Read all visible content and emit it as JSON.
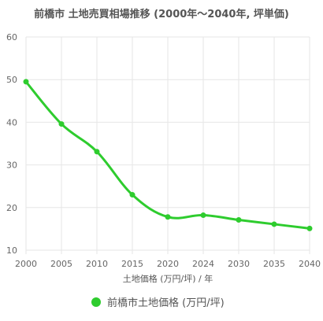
{
  "chart_data": {
    "type": "line",
    "title": "前橋市 土地売買相場推移 (2000年〜2040年, 坪単価)",
    "xlabel": "土地価格 (万円/坪) / 年",
    "ylabel": "",
    "categories": [
      "2000",
      "2005",
      "2010",
      "2015",
      "2020",
      "2024",
      "2030",
      "2035",
      "2040"
    ],
    "ylim": [
      10,
      60
    ],
    "yticks": [
      "10",
      "20",
      "30",
      "40",
      "50",
      "60"
    ],
    "grid": true,
    "legend_position": "bottom",
    "series": [
      {
        "name": "前橋市土地価格 (万円/坪)",
        "values": [
          49.5,
          39.6,
          33.1,
          23.0,
          17.8,
          18.2,
          17.1,
          16.1,
          15.1
        ],
        "color": "#2ecc2e"
      }
    ]
  }
}
